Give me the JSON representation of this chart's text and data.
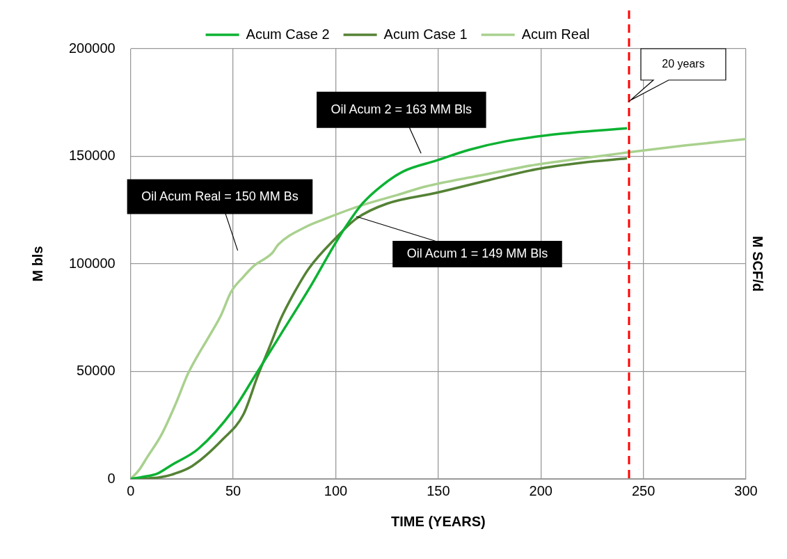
{
  "chart_data": {
    "type": "line",
    "xlabel": "TIME (YEARS)",
    "ylabel": "M bls",
    "y2label": "M SCF/d",
    "xlim": [
      0,
      300
    ],
    "xticks": [
      0,
      50,
      100,
      150,
      200,
      250,
      300
    ],
    "ylim": [
      0,
      200000
    ],
    "yticks": [
      0,
      50000,
      100000,
      150000,
      200000
    ],
    "grid": true,
    "legend": "top",
    "marker": "none",
    "line_style": "solid",
    "series": [
      {
        "name": "Acum Case 2",
        "color": "#0cb232",
        "x": [
          0,
          6,
          13,
          20,
          33,
          50,
          60,
          75,
          88,
          97,
          104,
          113,
          122,
          133,
          149,
          165,
          183,
          210,
          242
        ],
        "values": [
          0,
          1000,
          2500,
          6500,
          14000,
          32000,
          47000,
          70000,
          90000,
          105000,
          116000,
          128000,
          136000,
          143000,
          148000,
          153000,
          157000,
          160500,
          163000
        ]
      },
      {
        "name": "Acum Case 1",
        "color": "#548235",
        "x": [
          0,
          7,
          14,
          20,
          30,
          45,
          55,
          62,
          68,
          73,
          80,
          87,
          100,
          110,
          125,
          149,
          175,
          198,
          220,
          242
        ],
        "values": [
          0,
          200,
          700,
          2000,
          6000,
          18500,
          30000,
          48000,
          62000,
          74000,
          87000,
          98000,
          112000,
          121000,
          128000,
          133000,
          139000,
          144000,
          147000,
          149000
        ]
      },
      {
        "name": "Acum Real",
        "color": "#a9d18e",
        "x": [
          0,
          4,
          8,
          15,
          22,
          28,
          39,
          44,
          49,
          55,
          60,
          69,
          72,
          85,
          95,
          112,
          130,
          144,
          170,
          197,
          220,
          240,
          270,
          300
        ],
        "values": [
          0,
          4000,
          10000,
          20500,
          35000,
          49000,
          67500,
          76000,
          87000,
          94000,
          99000,
          105000,
          109000,
          117000,
          121000,
          127000,
          132000,
          136000,
          141000,
          146000,
          149000,
          151500,
          155000,
          158000
        ]
      }
    ],
    "annotations": [
      "Oil Acum 2 = 163 MM Bls",
      "Oil Acum Real = 150 MM Bs",
      {
        "text": "Oil Acum 1 = 149 MM Bls",
        "x": 110,
        "y": 122000
      }
    ],
    "ref_lines": [
      {
        "axis": "x",
        "value": 243,
        "label": "20 years",
        "color": "#ff0000",
        "line_style": "dashed"
      }
    ]
  }
}
